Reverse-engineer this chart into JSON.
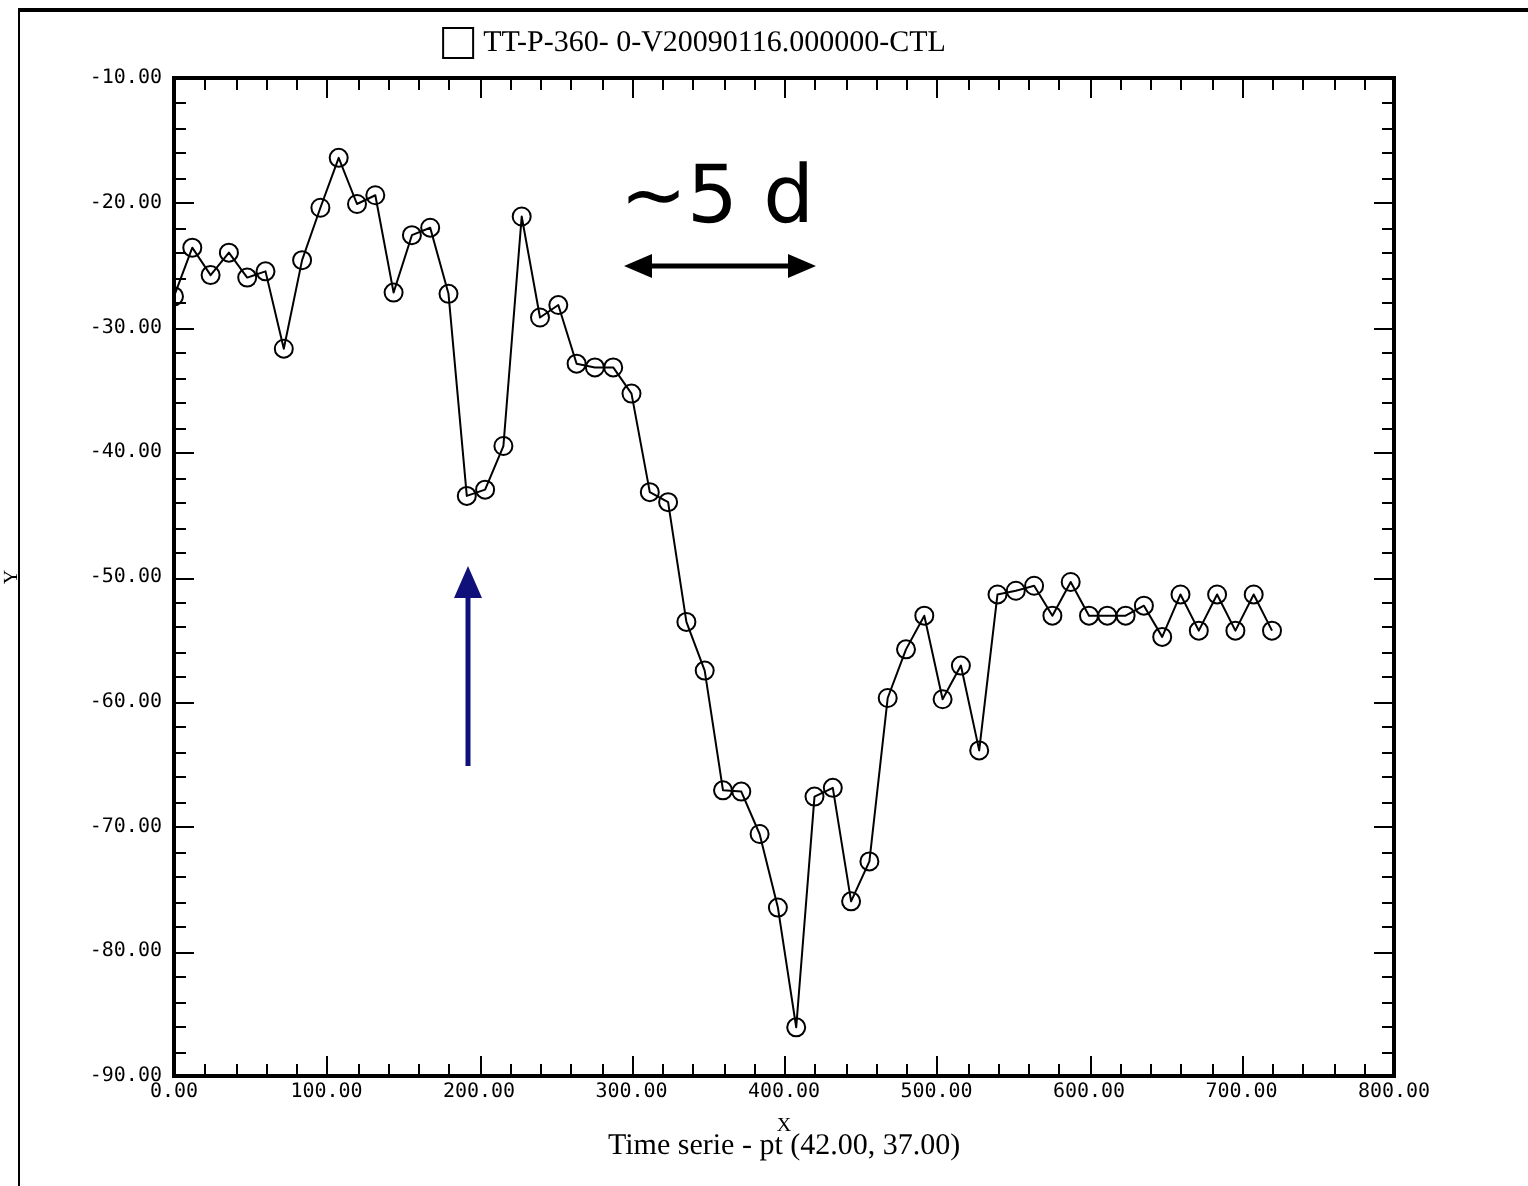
{
  "chart_data": {
    "type": "line",
    "xlabel": "X",
    "ylabel": "Y",
    "annotations": [
      "~5 d",
      "Time serie - pt (42.00, 37.00)"
    ],
    "series": [
      {
        "name": "TT-P-360- 0-V20090116.000000-CTL",
        "color": "#000000",
        "x": [
          0,
          12,
          24,
          36,
          48,
          60,
          72,
          84,
          96,
          108,
          120,
          132,
          144,
          156,
          168,
          180,
          192,
          204,
          216,
          228,
          240,
          252,
          264,
          276,
          288,
          300,
          312,
          324,
          336,
          348,
          360,
          372,
          384,
          396,
          408,
          420,
          432,
          444,
          456,
          468,
          480,
          492,
          504,
          516,
          528,
          540,
          552,
          564,
          576,
          588,
          600,
          612,
          624,
          636,
          648,
          660,
          672,
          684,
          696,
          708,
          720
        ],
        "values": [
          -27.5,
          -23.6,
          -25.8,
          -24.0,
          -26.0,
          -25.5,
          -31.7,
          -24.6,
          -20.4,
          -16.4,
          -20.1,
          -19.4,
          -27.2,
          -22.6,
          -22.0,
          -27.3,
          -43.5,
          -43.0,
          -39.5,
          -21.1,
          -29.2,
          -28.2,
          -32.9,
          -33.2,
          -33.2,
          -35.3,
          -43.2,
          -44.0,
          -53.6,
          -57.5,
          -67.1,
          -67.2,
          -70.6,
          -76.5,
          -86.1,
          -67.6,
          -66.9,
          -76.0,
          -72.8,
          -59.7,
          -55.8,
          -53.1,
          -59.8,
          -57.1,
          -63.9,
          -51.4,
          -51.1,
          -50.7,
          -53.1,
          -50.4,
          -53.1,
          -53.1,
          -53.1,
          -52.3,
          -54.8,
          -51.4,
          -54.3,
          -51.4,
          -54.3,
          -51.4,
          -54.3
        ]
      }
    ],
    "xlim": [
      0,
      800
    ],
    "xticks": [
      {
        "value": 0,
        "label": "0.00"
      },
      {
        "value": 100,
        "label": "100.00"
      },
      {
        "value": 200,
        "label": "200.00"
      },
      {
        "value": 300,
        "label": "300.00"
      },
      {
        "value": 400,
        "label": "400.00"
      },
      {
        "value": 500,
        "label": "500.00"
      },
      {
        "value": 600,
        "label": "600.00"
      },
      {
        "value": 700,
        "label": "700.00"
      },
      {
        "value": 800,
        "label": "800.00"
      }
    ],
    "ylim": [
      -90,
      -10
    ],
    "yticks": [
      {
        "value": -90,
        "label": "-90.00"
      },
      {
        "value": -80,
        "label": "-80.00"
      },
      {
        "value": -70,
        "label": "-70.00"
      },
      {
        "value": -60,
        "label": "-60.00"
      },
      {
        "value": -50,
        "label": "-50.00"
      },
      {
        "value": -40,
        "label": "-40.00"
      },
      {
        "value": -30,
        "label": "-30.00"
      },
      {
        "value": -20,
        "label": "-20.00"
      },
      {
        "value": -10,
        "label": "-10.00"
      }
    ],
    "grid": false,
    "legend": "top",
    "marker": "circle",
    "line_style": "solid"
  }
}
